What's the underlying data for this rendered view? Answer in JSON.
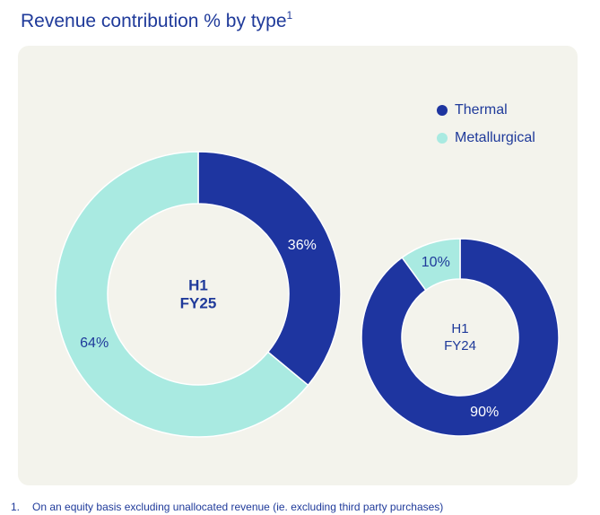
{
  "title": "Revenue contribution % by type",
  "title_sup": "1",
  "legend": [
    {
      "label": "Thermal",
      "color": "#1e35a0"
    },
    {
      "label": "Metallurgical",
      "color": "#a9eae1"
    }
  ],
  "footnote": {
    "number": "1.",
    "text": "On an equity basis excluding unallocated revenue (ie. excluding third party purchases)"
  },
  "chart_data": [
    {
      "type": "pie",
      "center_label": [
        "H1",
        "FY25"
      ],
      "categories": [
        "Thermal",
        "Metallurgical"
      ],
      "values": [
        36,
        64
      ],
      "labels": [
        "36%",
        "64%"
      ],
      "colors": [
        "#1e35a0",
        "#a9eae1"
      ]
    },
    {
      "type": "pie",
      "center_label": [
        "H1",
        "FY24"
      ],
      "categories": [
        "Thermal",
        "Metallurgical"
      ],
      "values": [
        90,
        10
      ],
      "labels": [
        "90%",
        "10%"
      ],
      "colors": [
        "#1e35a0",
        "#a9eae1"
      ]
    }
  ]
}
